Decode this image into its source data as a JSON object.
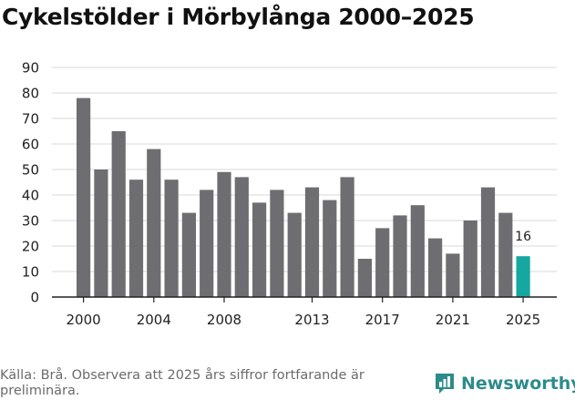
{
  "title": "Cykelstölder i Mörbylånga 2000–2025",
  "source": "Källa: Brå. Observera att 2025 års siffror fortfarande är preliminära.",
  "brand": {
    "name": "Newsworthy",
    "icon": "newsworthy-logo-icon",
    "color": "#2e8b8b"
  },
  "colors": {
    "bar": "#6e6e72",
    "highlight": "#16a8a0",
    "grid": "#d9d9d9",
    "axis": "#222222"
  },
  "chart_data": {
    "type": "bar",
    "title": "Cykelstölder i Mörbylånga 2000–2025",
    "xlabel": "",
    "ylabel": "",
    "categories": [
      "2000",
      "2001",
      "2002",
      "2003",
      "2004",
      "2005",
      "2006",
      "2007",
      "2008",
      "2009",
      "2010",
      "2011",
      "2012",
      "2013",
      "2014",
      "2015",
      "2016",
      "2017",
      "2018",
      "2019",
      "2020",
      "2021",
      "2022",
      "2023",
      "2024",
      "2025"
    ],
    "values": [
      78,
      50,
      65,
      46,
      58,
      46,
      33,
      42,
      49,
      47,
      37,
      42,
      33,
      43,
      38,
      47,
      15,
      27,
      32,
      36,
      23,
      17,
      30,
      43,
      33,
      16
    ],
    "ylim": [
      0,
      90
    ],
    "yticks": [
      0,
      10,
      20,
      30,
      40,
      50,
      60,
      70,
      80,
      90
    ],
    "xtick_labels": [
      "2000",
      "2004",
      "2008",
      "2013",
      "2017",
      "2021",
      "2025"
    ],
    "highlight": {
      "category": "2025",
      "label": "16"
    },
    "grid": true
  }
}
